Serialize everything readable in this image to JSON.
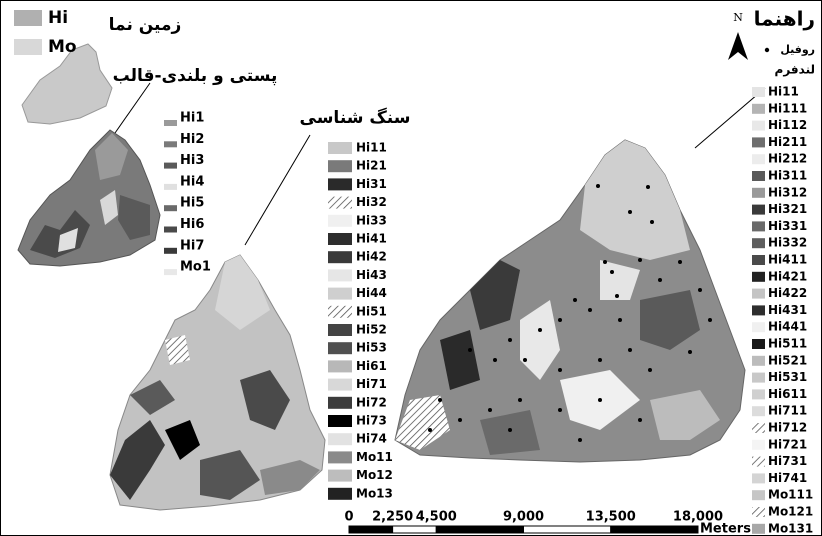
{
  "relief_legend": {
    "title": "زمین نما",
    "items": [
      {
        "label": "Hi",
        "color": "#b0b0b0"
      },
      {
        "label": "Mo",
        "color": "#d8d8d8"
      }
    ]
  },
  "form_label": "پستی و بلندی-قالب",
  "form_legend": [
    {
      "label": "Hi1",
      "color": "#9a9a9a"
    },
    {
      "label": "Hi2",
      "color": "#7a7a7a"
    },
    {
      "label": "Hi3",
      "color": "#5a5a5a"
    },
    {
      "label": "Hi4",
      "color": "#e0e0e0"
    },
    {
      "label": "Hi5",
      "color": "#6a6a6a"
    },
    {
      "label": "Hi6",
      "color": "#4a4a4a"
    },
    {
      "label": "Hi7",
      "color": "#3a3a3a"
    },
    {
      "label": "Mo1",
      "color": "#e8e8e8"
    }
  ],
  "lithology_label": "سنگ شناسی",
  "lithology_legend": [
    {
      "label": "Hi11",
      "color": "#c8c8c8"
    },
    {
      "label": "Hi21",
      "color": "#7a7a7a"
    },
    {
      "label": "Hi31",
      "color": "#2a2a2a"
    },
    {
      "label": "Hi32",
      "color": "#a0a0a0",
      "hatched": true
    },
    {
      "label": "Hi33",
      "color": "#f0f0f0"
    },
    {
      "label": "Hi41",
      "color": "#2e2e2e"
    },
    {
      "label": "Hi42",
      "color": "#3a3a3a"
    },
    {
      "label": "Hi43",
      "color": "#e6e6e6"
    },
    {
      "label": "Hi44",
      "color": "#cfcfcf"
    },
    {
      "label": "Hi51",
      "color": "#d0d0d0",
      "hatched": true
    },
    {
      "label": "Hi52",
      "color": "#444444"
    },
    {
      "label": "Hi53",
      "color": "#505050"
    },
    {
      "label": "Hi61",
      "color": "#b8b8b8"
    },
    {
      "label": "Hi71",
      "color": "#d8d8d8"
    },
    {
      "label": "Hi72",
      "color": "#3c3c3c"
    },
    {
      "label": "Hi73",
      "color": "#000000"
    },
    {
      "label": "Hi74",
      "color": "#e2e2e2"
    },
    {
      "label": "Mo11",
      "color": "#8a8a8a"
    },
    {
      "label": "Mo12",
      "color": "#bdbdbd"
    },
    {
      "label": "Mo13",
      "color": "#222222"
    }
  ],
  "legend": {
    "north": "N",
    "title": "راهنما",
    "profile": "روفیل",
    "landform": "لندفرم",
    "items": [
      {
        "label": "Hi11",
        "color": "#e4e4e4"
      },
      {
        "label": "Hi111",
        "color": "#b4b4b4"
      },
      {
        "label": "Hi112",
        "color": "#e8e8e8"
      },
      {
        "label": "Hi211",
        "color": "#6e6e6e"
      },
      {
        "label": "Hi212",
        "color": "#ececec"
      },
      {
        "label": "Hi311",
        "color": "#5a5a5a"
      },
      {
        "label": "Hi312",
        "color": "#9a9a9a"
      },
      {
        "label": "Hi321",
        "color": "#3a3a3a"
      },
      {
        "label": "Hi331",
        "color": "#6a6a6a"
      },
      {
        "label": "Hi332",
        "color": "#5e5e5e"
      },
      {
        "label": "Hi411",
        "color": "#4a4a4a"
      },
      {
        "label": "Hi421",
        "color": "#222222"
      },
      {
        "label": "Hi422",
        "color": "#c4c4c4"
      },
      {
        "label": "Hi431",
        "color": "#2e2e2e"
      },
      {
        "label": "Hi441",
        "color": "#f0f0f0"
      },
      {
        "label": "Hi511",
        "color": "#1a1a1a"
      },
      {
        "label": "Hi521",
        "color": "#bcbcbc"
      },
      {
        "label": "Hi531",
        "color": "#c8c8c8"
      },
      {
        "label": "Hi611",
        "color": "#d0d0d0"
      },
      {
        "label": "Hi711",
        "color": "#dcdcdc"
      },
      {
        "label": "Hi712",
        "color": "#c0c0c0",
        "hatched": true
      },
      {
        "label": "Hi721",
        "color": "#f4f4f4"
      },
      {
        "label": "Hi731",
        "color": "#e0e0e0",
        "hatched": true
      },
      {
        "label": "Hi741",
        "color": "#d4d4d4"
      },
      {
        "label": "Mo111",
        "color": "#c6c6c6"
      },
      {
        "label": "Mo121",
        "color": "#707070",
        "hatched": true
      },
      {
        "label": "Mo131",
        "color": "#a8a8a8"
      }
    ]
  },
  "scale_bar": {
    "ticks": [
      0,
      {
        "value": 2250,
        "label": "2,250"
      },
      {
        "value": 4500,
        "label": "4,500"
      },
      {
        "value": 9000,
        "label": "9,000"
      },
      {
        "value": 13500,
        "label": "13,500"
      },
      {
        "value": 18000,
        "label": "18,000"
      }
    ],
    "unit": "Meters"
  }
}
